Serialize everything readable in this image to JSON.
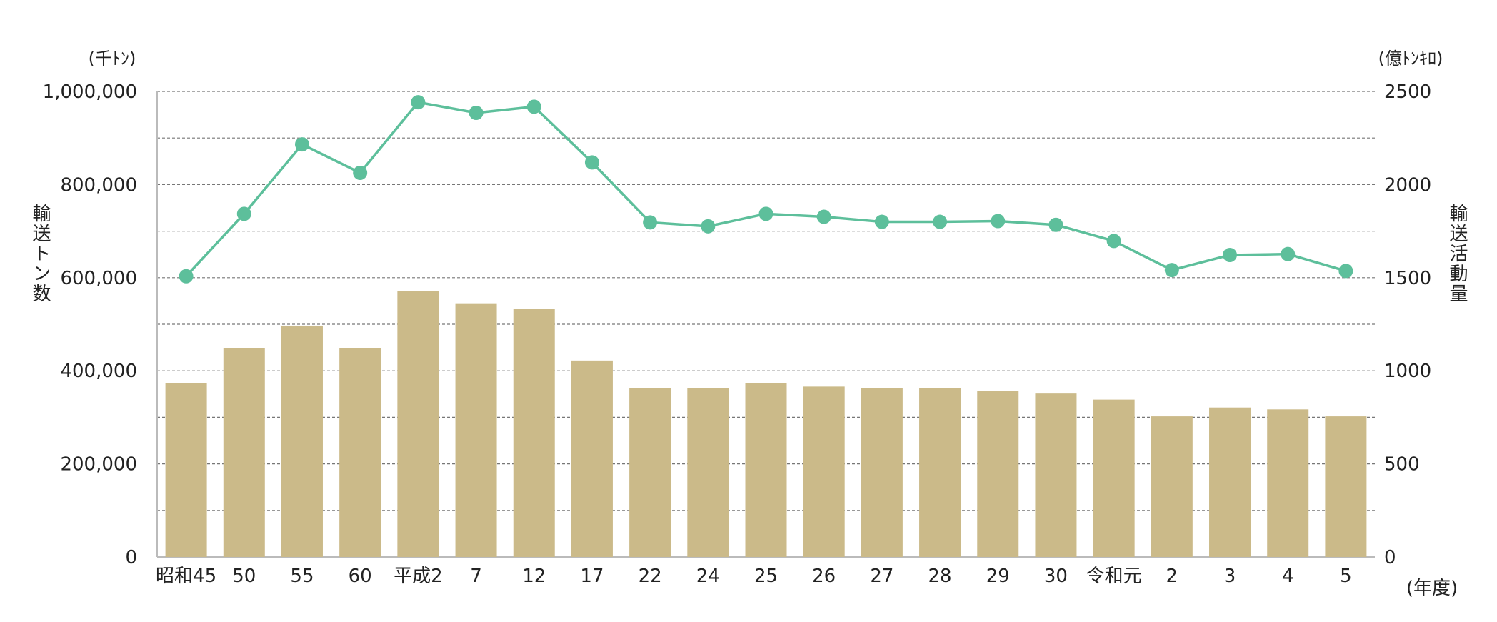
{
  "chart_data": {
    "type": "bar+line",
    "categories": [
      "昭和45",
      "50",
      "55",
      "60",
      "平成2",
      "7",
      "12",
      "17",
      "22",
      "24",
      "25",
      "26",
      "27",
      "28",
      "29",
      "30",
      "令和元",
      "2",
      "3",
      "4",
      "5"
    ],
    "series": [
      {
        "axis": "left",
        "chart": "bar",
        "color": "#cbba89",
        "values": [
          373000,
          448000,
          497000,
          448000,
          572000,
          545000,
          533000,
          422000,
          363000,
          363000,
          374000,
          366000,
          362000,
          362000,
          357000,
          351000,
          338000,
          302000,
          321000,
          317000,
          302000
        ]
      },
      {
        "axis": "right",
        "chart": "line",
        "color": "#5dbf9b",
        "values": [
          1508,
          1843,
          2216,
          2063,
          2442,
          2385,
          2418,
          2119,
          1797,
          1776,
          1843,
          1827,
          1800,
          1800,
          1804,
          1784,
          1697,
          1541,
          1622,
          1627,
          1536
        ]
      }
    ],
    "left_axis": {
      "unit": "(千ﾄﾝ)",
      "title": "輸送トン数",
      "ticks": [
        "1,000,000",
        "800,000",
        "600,000",
        "400,000",
        "200,000",
        "0"
      ],
      "ylim": [
        0,
        1000000
      ]
    },
    "right_axis": {
      "unit": "(億ﾄﾝｷﾛ)",
      "title": "輸送活動量",
      "ticks": [
        "2500",
        "2000",
        "1500",
        "1000",
        "500",
        "0"
      ],
      "ylim": [
        0,
        2500
      ]
    },
    "x_unit": "(年度)",
    "grid": true
  }
}
